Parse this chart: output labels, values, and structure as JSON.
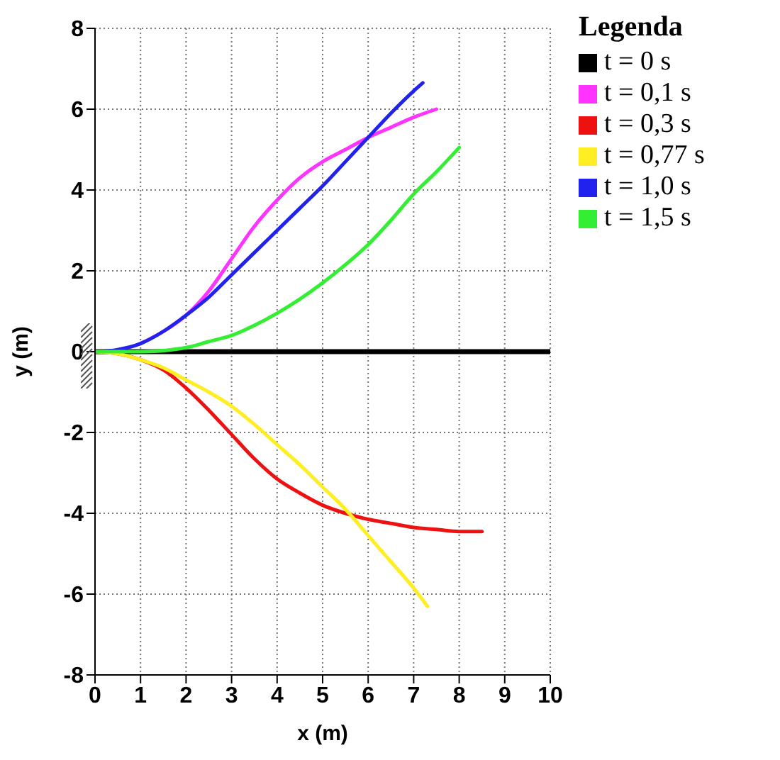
{
  "chart_data": {
    "type": "line",
    "xlabel": "x (m)",
    "ylabel": "y (m)",
    "legend_title": "Legenda",
    "xlim": [
      0,
      10
    ],
    "xticks": [
      0,
      1,
      2,
      3,
      4,
      5,
      6,
      7,
      8,
      9,
      10
    ],
    "ylim": [
      -8,
      8
    ],
    "yticks": [
      -8,
      -6,
      -4,
      -2,
      0,
      2,
      4,
      6,
      8
    ],
    "grid": true,
    "legend": "right",
    "marker": "none",
    "line_style": "solid",
    "series": [
      {
        "name": "t = 0 s",
        "color": "#000000",
        "x": [
          0,
          10
        ],
        "values": [
          0,
          0
        ]
      },
      {
        "name": "t = 0,1 s",
        "color": "#ff33ff",
        "x": [
          1,
          1.5,
          2,
          2.5,
          3,
          3.5,
          4,
          4.5,
          5,
          5.5,
          6,
          6.5,
          7,
          7.5
        ],
        "values": [
          0.2,
          0.5,
          0.9,
          1.5,
          2.3,
          3.1,
          3.75,
          4.3,
          4.7,
          5.0,
          5.3,
          5.55,
          5.8,
          6.0
        ]
      },
      {
        "name": "t = 0,3 s",
        "color": "#ee1111",
        "x": [
          0,
          0.5,
          1,
          1.5,
          2,
          2.5,
          3,
          3.5,
          4,
          4.5,
          5,
          5.5,
          6,
          6.5,
          7,
          7.5,
          8,
          8.5
        ],
        "values": [
          0,
          -0.05,
          -0.2,
          -0.45,
          -0.9,
          -1.45,
          -2.05,
          -2.65,
          -3.15,
          -3.5,
          -3.8,
          -4.0,
          -4.15,
          -4.25,
          -4.35,
          -4.4,
          -4.45,
          -4.45
        ]
      },
      {
        "name": "t = 0,77 s",
        "color": "#ffee22",
        "x": [
          0,
          0.5,
          1,
          1.5,
          2,
          2.5,
          3,
          3.5,
          4,
          4.5,
          5,
          5.5,
          6,
          6.5,
          7,
          7.3
        ],
        "values": [
          0,
          -0.05,
          -0.2,
          -0.4,
          -0.7,
          -1.0,
          -1.35,
          -1.8,
          -2.3,
          -2.8,
          -3.35,
          -3.9,
          -4.55,
          -5.2,
          -5.85,
          -6.3
        ]
      },
      {
        "name": "t = 1,0 s",
        "color": "#2222ee",
        "x": [
          0,
          0.5,
          1,
          1.5,
          2,
          2.5,
          3,
          3.5,
          4,
          4.5,
          5,
          5.5,
          6,
          6.5,
          7,
          7.2
        ],
        "values": [
          0,
          0.05,
          0.2,
          0.5,
          0.9,
          1.35,
          1.9,
          2.45,
          3.0,
          3.55,
          4.1,
          4.7,
          5.3,
          5.9,
          6.45,
          6.65
        ]
      },
      {
        "name": "t = 1,5 s",
        "color": "#33ee33",
        "x": [
          0,
          1,
          2,
          2.5,
          3,
          3.5,
          4,
          4.5,
          5,
          5.5,
          6,
          6.5,
          7,
          7.5,
          8
        ],
        "values": [
          0,
          0,
          0.1,
          0.25,
          0.4,
          0.65,
          0.95,
          1.3,
          1.7,
          2.15,
          2.65,
          3.25,
          3.9,
          4.45,
          5.05
        ]
      }
    ]
  }
}
